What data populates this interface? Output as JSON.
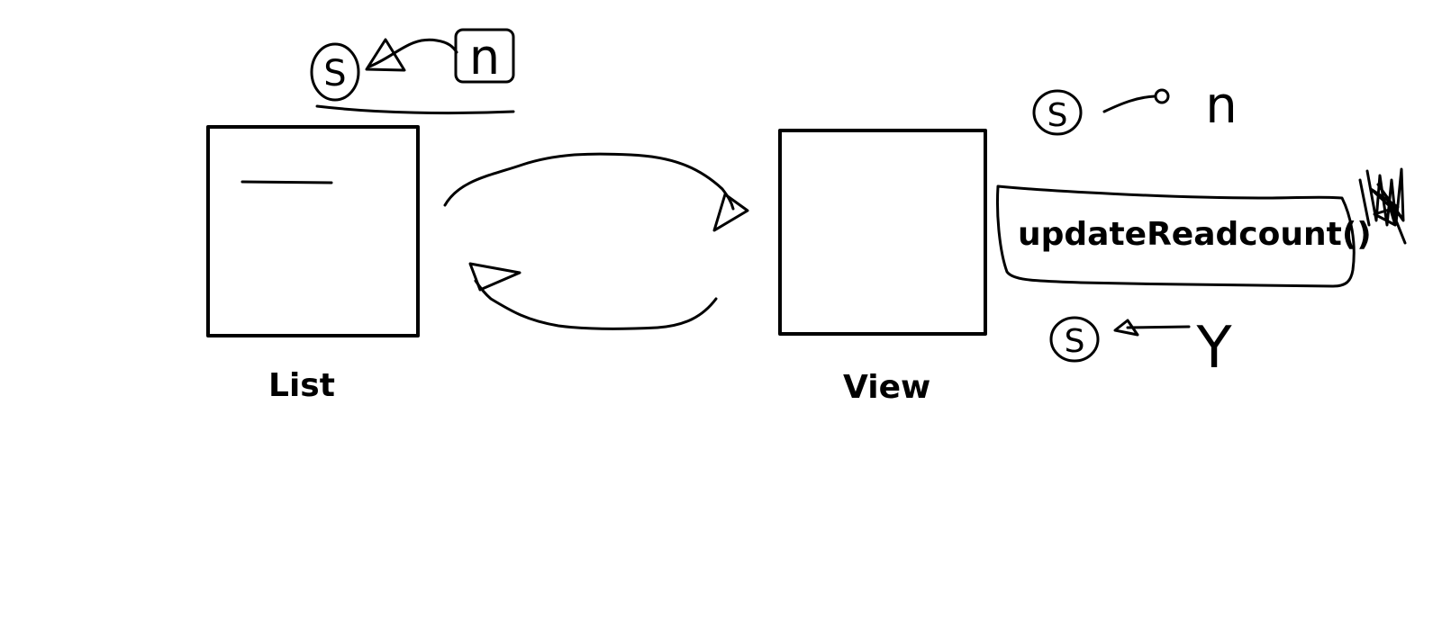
{
  "diagram": {
    "nodes": {
      "list": {
        "label": "List"
      },
      "view": {
        "label": "View"
      }
    },
    "method": {
      "label": "updateReadcount()"
    },
    "annotations": {
      "list_top": {
        "left": "S",
        "right": "n"
      },
      "view_top": {
        "left": "S",
        "right": "n"
      },
      "view_bottom": {
        "left": "S",
        "right": "Y"
      }
    },
    "colors": {
      "ink": "#000000",
      "background": "#ffffff"
    }
  }
}
